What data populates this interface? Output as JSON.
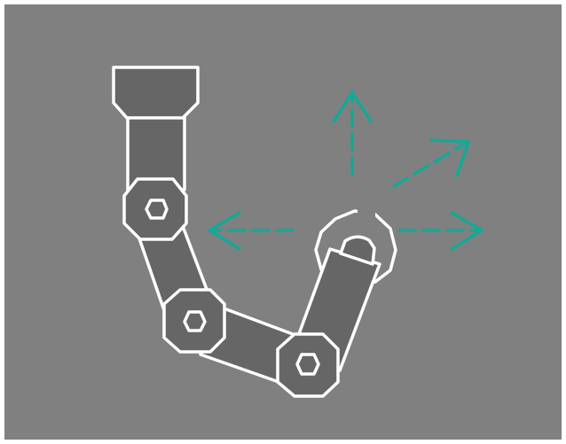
{
  "canvas": {
    "background": "#808080",
    "page_background": "#ffffff"
  },
  "colors": {
    "segment_fill": "#666666",
    "outline": "#ffffff",
    "arrow": "#14a896"
  },
  "icons": {
    "base": "robot-arm-base-icon",
    "links": [
      "upper-link",
      "middle-link",
      "lower-link",
      "end-effector-link"
    ],
    "joints": [
      "shoulder-joint-icon",
      "elbow-joint-icon",
      "wrist-joint-icon"
    ],
    "rotation": "rotation-ring-icon",
    "arrows": [
      "arrow-up-icon",
      "arrow-left-icon",
      "arrow-right-icon",
      "arrow-diagonal-icon"
    ]
  }
}
